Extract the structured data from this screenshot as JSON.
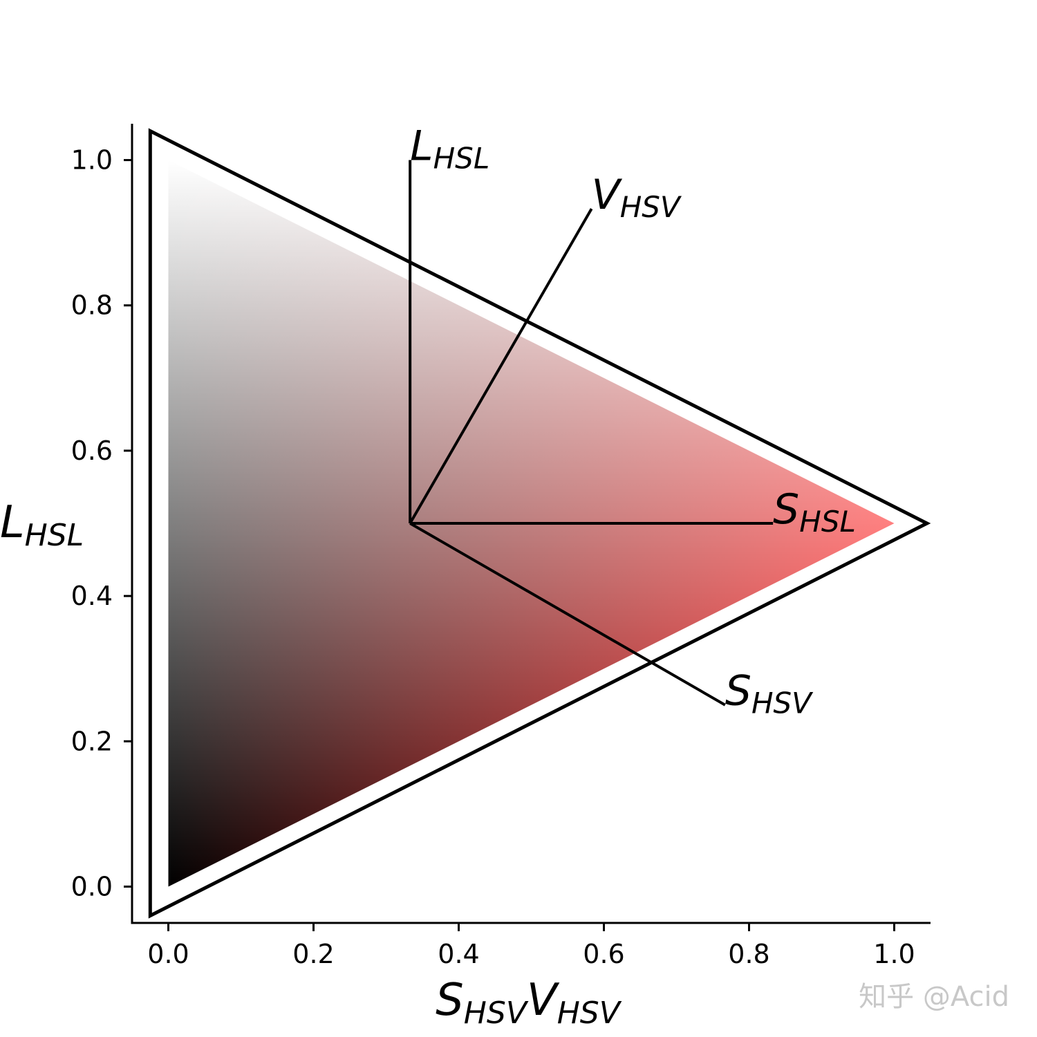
{
  "chart_data": {
    "type": "scatter",
    "title": "",
    "xlabel": {
      "base_1": "S",
      "sub_1": "HSV",
      "base_2": "V",
      "sub_2": "HSV"
    },
    "ylabel": {
      "base": "L",
      "sub": "HSL"
    },
    "xlim": [
      -0.05,
      1.05
    ],
    "ylim": [
      -0.05,
      1.05
    ],
    "xticks": [
      0.0,
      0.2,
      0.4,
      0.6,
      0.8,
      1.0
    ],
    "yticks": [
      0.0,
      0.2,
      0.4,
      0.6,
      0.8,
      1.0
    ],
    "xtick_labels": [
      "0.0",
      "0.2",
      "0.4",
      "0.6",
      "0.8",
      "1.0"
    ],
    "ytick_labels": [
      "0.0",
      "0.2",
      "0.4",
      "0.6",
      "0.8",
      "1.0"
    ],
    "grid": false,
    "color_region": {
      "vertices": [
        [
          0.0,
          0.0
        ],
        [
          0.0,
          1.0
        ],
        [
          1.0,
          0.5
        ]
      ],
      "vertex_colors": [
        "#000000",
        "#ffffff",
        "#ff0000"
      ]
    },
    "outline_triangle": [
      [
        -0.025,
        -0.04
      ],
      [
        -0.025,
        1.04
      ],
      [
        1.045,
        0.5
      ]
    ],
    "vectors": [
      {
        "from": [
          0.333,
          0.5
        ],
        "to": [
          0.333,
          1.0
        ],
        "label_base": "L",
        "label_sub": "HSL"
      },
      {
        "from": [
          0.333,
          0.5
        ],
        "to": [
          0.583,
          0.933
        ],
        "label_base": "V",
        "label_sub": "HSV"
      },
      {
        "from": [
          0.333,
          0.5
        ],
        "to": [
          0.833,
          0.5
        ],
        "label_base": "S",
        "label_sub": "HSL"
      },
      {
        "from": [
          0.333,
          0.5
        ],
        "to": [
          0.767,
          0.25
        ],
        "label_base": "S",
        "label_sub": "HSV"
      }
    ]
  },
  "watermark": "知乎 @Acid"
}
